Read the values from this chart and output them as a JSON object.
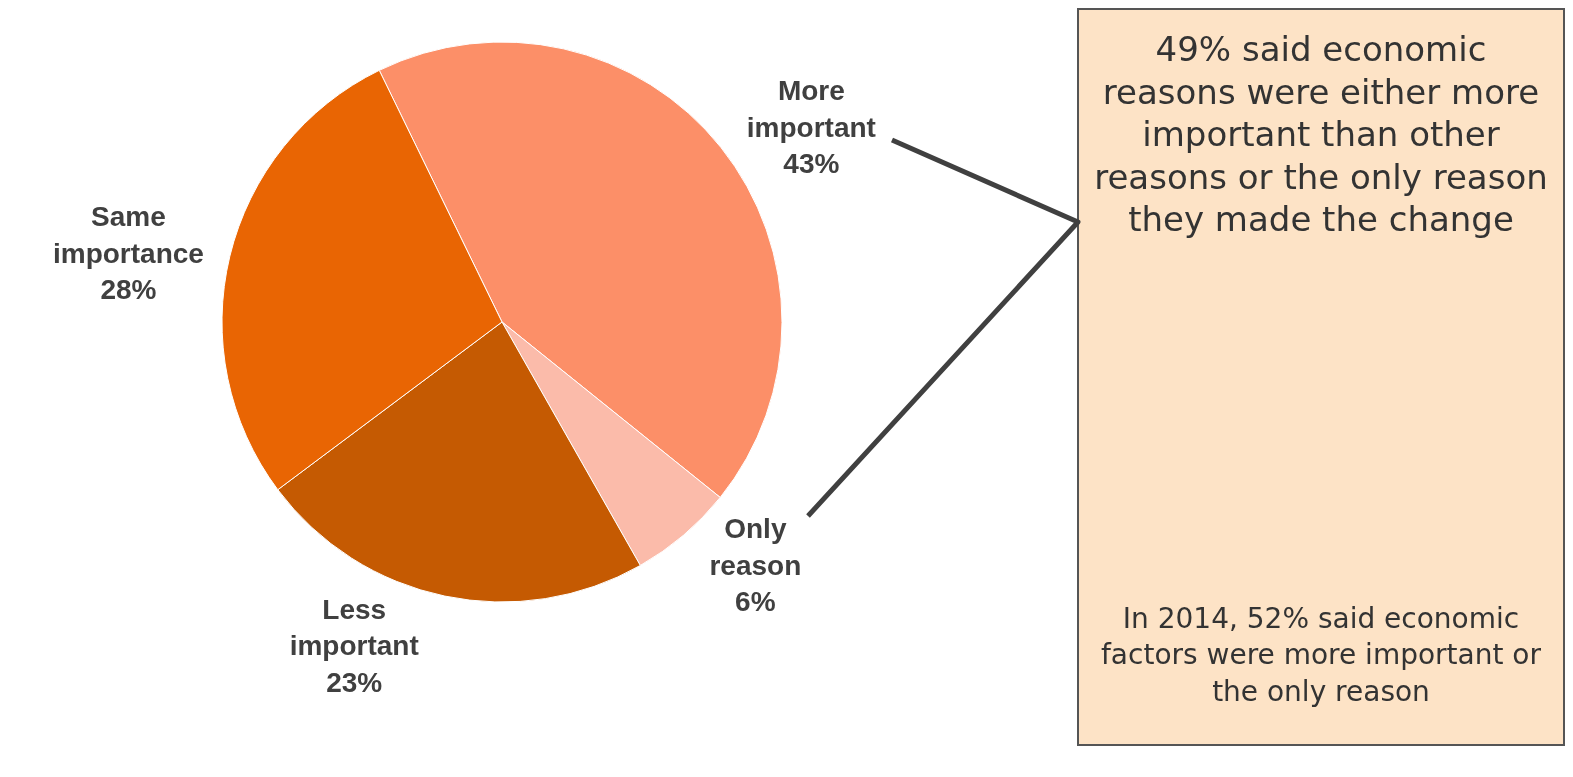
{
  "chart_data": {
    "type": "pie",
    "categories": [
      "More important",
      "Only reason",
      "Less important",
      "Same importance"
    ],
    "values": [
      43,
      6,
      23,
      28
    ],
    "value_labels": [
      "43%",
      "6%",
      "23%",
      "28%"
    ],
    "colors": [
      "#fc8f68",
      "#fbbbaa",
      "#c55a02",
      "#e96503"
    ],
    "legend": false,
    "annotations": [
      "49% said economic reasons were either more important than other reasons or the only reason they made the change",
      "In 2014, 52% said economic factors were more important or the only reason"
    ]
  }
}
